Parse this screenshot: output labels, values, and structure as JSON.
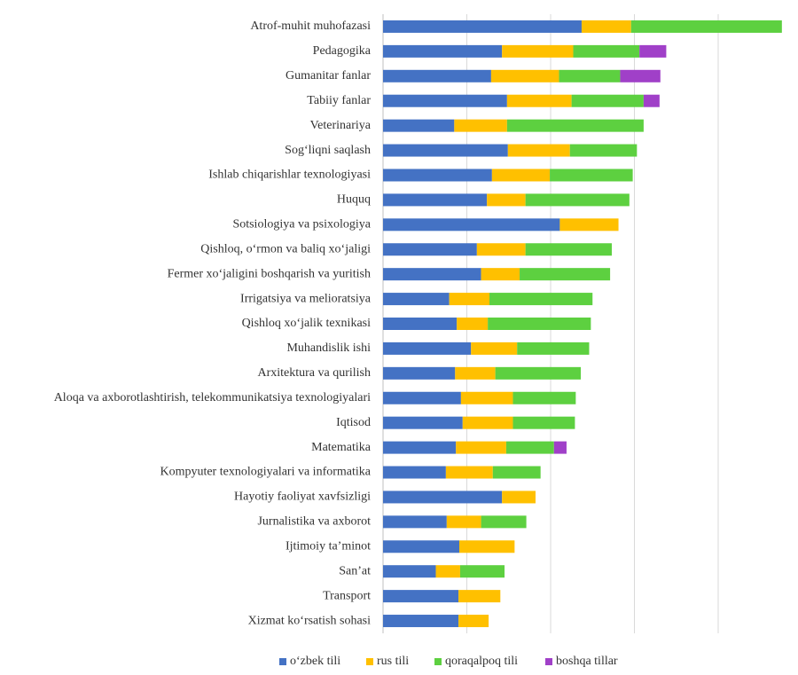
{
  "chart_data": {
    "type": "stacked-barh",
    "categories": [
      "Atrof-muhit muhofazasi",
      "Pedagogika",
      "Gumanitar fanlar",
      "Tabiiy fanlar",
      "Veterinariya",
      "Sog‘liqni saqlash",
      "Ishlab chiqarishlar texnologiyasi",
      "Huquq",
      "Sotsiologiya va psixologiya",
      "Qishloq, o‘rmon va baliq xo‘jaligi",
      "Fermer xo‘jaligini boshqarish va yuritish",
      "Irrigatsiya va melioratsiya",
      "Qishloq xo‘jalik texnikasi",
      "Muhandislik ishi",
      "Arxitektura va qurilish",
      "Aloqa va axborotlashtirish, telekommunikatsiya texnologiyalari",
      "Iqtisod",
      "Matematika",
      "Kompyuter texnologiyalari va informatika",
      "Hayotiy faoliyat xavfsizligi",
      "Jurnalistika va axborot",
      "Ijtimoiy ta’minot",
      "San’at",
      "Transport",
      "Xizmat ko‘rsatish sohasi"
    ],
    "series": [
      {
        "name": "o‘zbek tili",
        "color": "#4472c4",
        "values": [
          2.37,
          1.42,
          1.29,
          1.48,
          0.85,
          1.49,
          1.3,
          1.24,
          2.11,
          1.12,
          1.17,
          0.79,
          0.88,
          1.05,
          0.86,
          0.93,
          0.95,
          0.87,
          0.75,
          1.42,
          0.76,
          0.91,
          0.63,
          0.9,
          0.9
        ]
      },
      {
        "name": "rus tili",
        "color": "#ffc000",
        "values": [
          0.59,
          0.85,
          0.81,
          0.77,
          0.63,
          0.74,
          0.69,
          0.46,
          0.7,
          0.58,
          0.46,
          0.48,
          0.37,
          0.55,
          0.48,
          0.62,
          0.6,
          0.6,
          0.56,
          0.4,
          0.41,
          0.66,
          0.29,
          0.5,
          0.36
        ]
      },
      {
        "name": "qoraqalpoq tili",
        "color": "#5dd040",
        "values": [
          1.8,
          0.79,
          0.73,
          0.86,
          1.63,
          0.8,
          0.99,
          1.24,
          null,
          1.03,
          1.08,
          1.23,
          1.23,
          0.86,
          1.02,
          0.75,
          0.74,
          0.57,
          0.57,
          null,
          0.54,
          null,
          0.53,
          null,
          null
        ]
      },
      {
        "name": "boshqa tillar",
        "color": "#a040c8",
        "values": [
          null,
          0.32,
          0.48,
          0.19,
          null,
          null,
          null,
          null,
          null,
          null,
          null,
          null,
          null,
          null,
          null,
          null,
          null,
          0.15,
          null,
          null,
          null,
          null,
          null,
          null,
          null
        ]
      }
    ],
    "xlim": [
      0,
      4.9
    ],
    "xticks": [
      0,
      1,
      2,
      3,
      4
    ],
    "grid": true,
    "legend": "bottom"
  }
}
